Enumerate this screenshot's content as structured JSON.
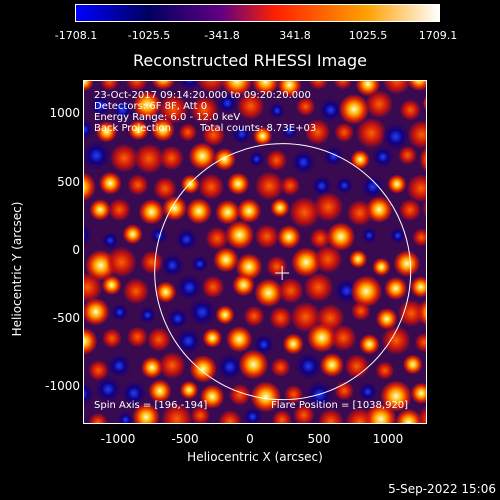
{
  "colorbar": {
    "labels": [
      "-1708.1",
      "-1025.5",
      "-341.8",
      "341.8",
      "1025.5",
      "1709.1"
    ],
    "colors": [
      "#0000ff",
      "#000060",
      "#600080",
      "#ff2000",
      "#ffa000",
      "#ffffff"
    ]
  },
  "title": "Reconstructed RHESSI Image",
  "annotations": {
    "time": "23-Oct-2017 09:14:20.000 to 09:20:20.000",
    "detectors": "Detectors: 6F 8F, Att 0",
    "energy": "Energy Range: 6.0 - 12.0 keV",
    "method": "Back Projection",
    "counts": "Total counts: 8.73E+03",
    "spin_axis": "Spin Axis = [196,-194]",
    "flare_position": "Flare Position = [1038,920]"
  },
  "axes": {
    "xlabel": "Heliocentric X (arcsec)",
    "ylabel": "Heliocentric Y (arcsec)",
    "xticks": [
      "-1000",
      "-500",
      "0",
      "500",
      "1000"
    ],
    "yticks": [
      "1000",
      "500",
      "0",
      "-500",
      "-1000"
    ],
    "xlim": [
      -1290,
      1290
    ],
    "ylim": [
      -1290,
      1290
    ]
  },
  "solar_disk": {
    "center": [
      200,
      -140
    ],
    "radius": 960
  },
  "date_stamp": "5-Sep-2022 15:06"
}
